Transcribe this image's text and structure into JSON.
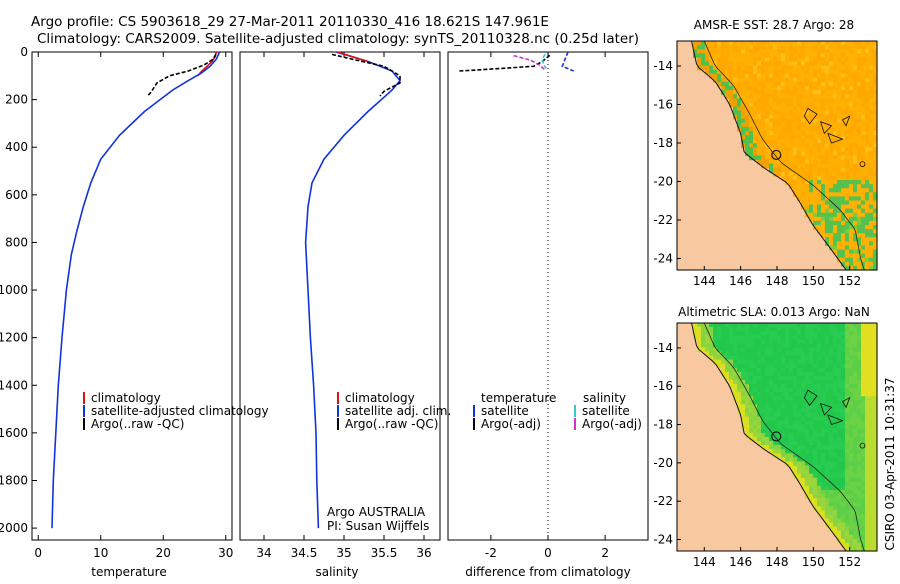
{
  "header": {
    "title_line1": "Argo profile: CS 5903618_29 27-Mar-2011 20110330_416 18.621S 147.961E",
    "title_line2": "Climatology: CARS2009. Satellite-adjusted climatology: synTS_20110328.nc (0.25d later)"
  },
  "side_label": "CSIRO 03-Apr-2011 10:31:37",
  "colors": {
    "climatology": "#dd1111",
    "satellite": "#1133dd",
    "argo": "#000000",
    "sal_satellite": "#33cccc",
    "sal_argo": "#cc33cc",
    "land": "#f8c8a0"
  },
  "chart_data": [
    {
      "type": "line",
      "name": "temperature",
      "xlabel": "temperature",
      "xlim": [
        -1,
        31
      ],
      "ylim": [
        0,
        2050
      ],
      "xticks": [
        0,
        10,
        20,
        30
      ],
      "yticks": [
        0,
        200,
        400,
        600,
        800,
        1000,
        1200,
        1400,
        1600,
        1800,
        2000
      ],
      "series": [
        {
          "name": "climatology",
          "color": "#dd1111",
          "points": [
            [
              28.5,
              0
            ],
            [
              28.3,
              20
            ],
            [
              27.8,
              40
            ],
            [
              27,
              60
            ],
            [
              26.2,
              80
            ],
            [
              25.5,
              100
            ]
          ]
        },
        {
          "name": "satellite-adjusted climatology",
          "color": "#1133dd",
          "points": [
            [
              29,
              0
            ],
            [
              28.5,
              30
            ],
            [
              27.5,
              60
            ],
            [
              26,
              90
            ],
            [
              24,
              120
            ],
            [
              21.5,
              160
            ],
            [
              17,
              250
            ],
            [
              13,
              350
            ],
            [
              10,
              450
            ],
            [
              8.4,
              550
            ],
            [
              7.2,
              650
            ],
            [
              6.2,
              750
            ],
            [
              5.3,
              850
            ],
            [
              4.5,
              1000
            ],
            [
              3.8,
              1200
            ],
            [
              3.2,
              1400
            ],
            [
              2.8,
              1600
            ],
            [
              2.4,
              1800
            ],
            [
              2.2,
              2000
            ]
          ]
        },
        {
          "name": "Argo(..raw -QC)",
          "color": "#000000",
          "points": [
            [
              28.4,
              10
            ],
            [
              28,
              30
            ],
            [
              26.5,
              55
            ],
            [
              24,
              80
            ],
            [
              21,
              100
            ],
            [
              19,
              130
            ],
            [
              18,
              170
            ],
            [
              17.5,
              185
            ]
          ]
        }
      ],
      "legend": [
        "climatology",
        "satellite-adjusted climatology",
        "Argo(..raw -QC)"
      ]
    },
    {
      "type": "line",
      "name": "salinity",
      "xlabel": "salinity",
      "xlim": [
        33.7,
        36.2
      ],
      "ylim": [
        0,
        2050
      ],
      "xticks": [
        34,
        34.5,
        35,
        35.5,
        36
      ],
      "series": [
        {
          "name": "satellite adj. clim.",
          "color": "#1133dd",
          "points": [
            [
              34.9,
              0
            ],
            [
              35.3,
              40
            ],
            [
              35.6,
              80
            ],
            [
              35.7,
              120
            ],
            [
              35.6,
              160
            ],
            [
              35.3,
              250
            ],
            [
              35.0,
              350
            ],
            [
              34.75,
              450
            ],
            [
              34.6,
              550
            ],
            [
              34.55,
              650
            ],
            [
              34.52,
              800
            ],
            [
              34.55,
              1000
            ],
            [
              34.58,
              1200
            ],
            [
              34.62,
              1400
            ],
            [
              34.65,
              1600
            ],
            [
              34.66,
              1800
            ],
            [
              34.68,
              2000
            ]
          ]
        },
        {
          "name": "climatology",
          "color": "#dd1111",
          "points": [
            [
              34.92,
              0
            ],
            [
              35.3,
              40
            ]
          ]
        },
        {
          "name": "Argo(..raw -QC)",
          "color": "#000000",
          "points": [
            [
              34.85,
              10
            ],
            [
              35.1,
              30
            ],
            [
              35.5,
              60
            ],
            [
              35.7,
              100
            ],
            [
              35.7,
              130
            ],
            [
              35.5,
              165
            ],
            [
              35.45,
              185
            ]
          ]
        }
      ],
      "legend": [
        "climatology",
        "satellite adj. clim.",
        "Argo(..raw -QC)"
      ],
      "annotation": [
        "Argo AUSTRALIA",
        "PI: Susan Wijffels"
      ]
    },
    {
      "type": "line",
      "name": "difference",
      "xlabel": "difference from climatology",
      "xlim": [
        -3.5,
        3.5
      ],
      "ylim": [
        0,
        2050
      ],
      "xticks": [
        -2,
        0,
        2
      ],
      "series": [
        {
          "name": "temperature satellite",
          "color": "#1133dd",
          "points": [
            [
              0.7,
              0
            ],
            [
              0.6,
              30
            ],
            [
              0.5,
              60
            ],
            [
              0.9,
              80
            ]
          ]
        },
        {
          "name": "temperature Argo(-adj)",
          "color": "#000000",
          "points": [
            [
              -3.1,
              80
            ],
            [
              -2,
              72
            ],
            [
              -0.5,
              60
            ],
            [
              -0.2,
              40
            ],
            [
              0.1,
              10
            ]
          ]
        },
        {
          "name": "salinity satellite",
          "color": "#33cccc",
          "points": [
            [
              -0.1,
              10
            ],
            [
              -0.2,
              30
            ],
            [
              -0.15,
              55
            ],
            [
              -0.05,
              70
            ]
          ]
        },
        {
          "name": "salinity Argo(-adj)",
          "color": "#cc33cc",
          "points": [
            [
              -1.2,
              15
            ],
            [
              -0.6,
              35
            ],
            [
              -0.3,
              55
            ],
            [
              -0.1,
              75
            ]
          ]
        }
      ],
      "legend_left_title": "temperature",
      "legend_right_title": "salinity",
      "legend_left": [
        "satellite",
        "Argo(-adj)"
      ],
      "legend_right": [
        "satellite",
        "Argo(-adj)"
      ]
    },
    {
      "type": "heatmap",
      "name": "sst_map",
      "title": "AMSR-E SST: 28.7 Argo: 28",
      "xlim": [
        142.5,
        153.5
      ],
      "ylim": [
        -24.6,
        -12.7
      ],
      "xticks": [
        144,
        146,
        148,
        150,
        152
      ],
      "yticks": [
        -14,
        -16,
        -18,
        -20,
        -22,
        -24
      ],
      "float_position": [
        147.96,
        -18.62
      ]
    },
    {
      "type": "heatmap",
      "name": "sla_map",
      "title": "Altimetric SLA: 0.013 Argo: NaN",
      "xlim": [
        142.5,
        153.5
      ],
      "ylim": [
        -24.6,
        -12.7
      ],
      "xticks": [
        144,
        146,
        148,
        150,
        152
      ],
      "yticks": [
        -14,
        -16,
        -18,
        -20,
        -22,
        -24
      ],
      "float_position": [
        147.96,
        -18.62
      ]
    }
  ]
}
